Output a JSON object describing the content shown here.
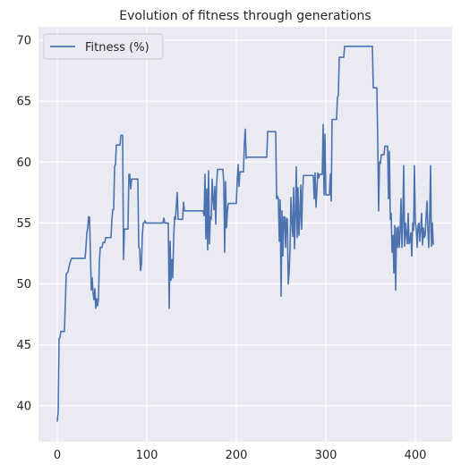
{
  "colors": {
    "axes_bg": "#eaeaf2",
    "grid": "#ffffff",
    "line": "#4c72b0",
    "legend_bg": "#eaeaf2",
    "legend_border": "#cccccc"
  },
  "chart_data": {
    "type": "line",
    "title": "Evolution of fitness through generations",
    "xlabel": "",
    "ylabel": "",
    "xlim": [
      -21,
      441
    ],
    "ylim": [
      37.05,
      71.1
    ],
    "xticks": [
      0,
      100,
      200,
      300,
      400
    ],
    "yticks": [
      40,
      45,
      50,
      55,
      60,
      65,
      70
    ],
    "grid": true,
    "legend_position": "top-left",
    "series": [
      {
        "name": "Fitness (%)",
        "points": [
          [
            0,
            38.7
          ],
          [
            1,
            39.5
          ],
          [
            2,
            45.5
          ],
          [
            3,
            45.6
          ],
          [
            4,
            46.1
          ],
          [
            8,
            46.1
          ],
          [
            9,
            48.5
          ],
          [
            10,
            50.8
          ],
          [
            12,
            51.0
          ],
          [
            14,
            51.7
          ],
          [
            16,
            52.1
          ],
          [
            31,
            52.1
          ],
          [
            32,
            53.0
          ],
          [
            33,
            54.2
          ],
          [
            34,
            54.6
          ],
          [
            35,
            55.5
          ],
          [
            36,
            55.5
          ],
          [
            37,
            52.5
          ],
          [
            38,
            49.5
          ],
          [
            39,
            50.5
          ],
          [
            40,
            49.2
          ],
          [
            41,
            48.7
          ],
          [
            42,
            49.6
          ],
          [
            43,
            48.0
          ],
          [
            44,
            48.8
          ],
          [
            45,
            48.2
          ],
          [
            46,
            48.8
          ],
          [
            47,
            51.8
          ],
          [
            48,
            53.0
          ],
          [
            50,
            53.0
          ],
          [
            51,
            53.4
          ],
          [
            53,
            53.4
          ],
          [
            54,
            53.8
          ],
          [
            60,
            53.8
          ],
          [
            61,
            55.3
          ],
          [
            62,
            56.1
          ],
          [
            63,
            56.1
          ],
          [
            64,
            59.6
          ],
          [
            65,
            59.8
          ],
          [
            66,
            61.4
          ],
          [
            70,
            61.4
          ],
          [
            71,
            62.2
          ],
          [
            73,
            62.2
          ],
          [
            74,
            52.0
          ],
          [
            75,
            54.5
          ],
          [
            79,
            54.5
          ],
          [
            80,
            59.0
          ],
          [
            81,
            59.0
          ],
          [
            82,
            57.8
          ],
          [
            83,
            58.6
          ],
          [
            90,
            58.6
          ],
          [
            91,
            53.0
          ],
          [
            92,
            52.9
          ],
          [
            93,
            51.1
          ],
          [
            94,
            51.6
          ],
          [
            95,
            54.0
          ],
          [
            96,
            55.0
          ],
          [
            97,
            55.0
          ],
          [
            98,
            55.2
          ],
          [
            99,
            55.0
          ],
          [
            118,
            55.0
          ],
          [
            119,
            55.4
          ],
          [
            120,
            55.0
          ],
          [
            124,
            55.0
          ],
          [
            125,
            48.0
          ],
          [
            126,
            53.5
          ],
          [
            127,
            50.3
          ],
          [
            128,
            52.0
          ],
          [
            129,
            50.5
          ],
          [
            130,
            53.7
          ],
          [
            131,
            55.5
          ],
          [
            132,
            55.3
          ],
          [
            134,
            57.5
          ],
          [
            135,
            55.3
          ],
          [
            140,
            55.3
          ],
          [
            141,
            56.7
          ],
          [
            142,
            56.0
          ],
          [
            163,
            56.0
          ],
          [
            164,
            55.6
          ],
          [
            165,
            59.0
          ],
          [
            166,
            53.7
          ],
          [
            167,
            57.8
          ],
          [
            168,
            52.8
          ],
          [
            169,
            59.3
          ],
          [
            170,
            53.3
          ],
          [
            171,
            55.5
          ],
          [
            172,
            55.3
          ],
          [
            173,
            58.6
          ],
          [
            174,
            57.0
          ],
          [
            175,
            56.1
          ],
          [
            176,
            58.0
          ],
          [
            177,
            54.9
          ],
          [
            178,
            58.2
          ],
          [
            179,
            59.4
          ],
          [
            185,
            59.4
          ],
          [
            186,
            58.3
          ],
          [
            187,
            52.6
          ],
          [
            188,
            58.4
          ],
          [
            189,
            54.6
          ],
          [
            190,
            55.9
          ],
          [
            191,
            56.6
          ],
          [
            200,
            56.6
          ],
          [
            201,
            58.5
          ],
          [
            202,
            59.8
          ],
          [
            203,
            58.0
          ],
          [
            204,
            59.2
          ],
          [
            208,
            59.2
          ],
          [
            209,
            61.5
          ],
          [
            210,
            62.7
          ],
          [
            211,
            60.3
          ],
          [
            212,
            60.4
          ],
          [
            234,
            60.4
          ],
          [
            235,
            62.5
          ],
          [
            244,
            62.5
          ],
          [
            245,
            57.0
          ],
          [
            246,
            57.2
          ],
          [
            247,
            57.0
          ],
          [
            248,
            53.5
          ],
          [
            249,
            56.9
          ],
          [
            250,
            49.0
          ],
          [
            251,
            56.0
          ],
          [
            252,
            52.3
          ],
          [
            253,
            55.5
          ],
          [
            254,
            55.5
          ],
          [
            255,
            53.0
          ],
          [
            256,
            55.4
          ],
          [
            257,
            55.3
          ],
          [
            258,
            50.0
          ],
          [
            259,
            51.0
          ],
          [
            260,
            52.8
          ],
          [
            261,
            57.1
          ],
          [
            262,
            55.1
          ],
          [
            263,
            53.9
          ],
          [
            264,
            57.9
          ],
          [
            265,
            52.9
          ],
          [
            266,
            55.6
          ],
          [
            267,
            59.6
          ],
          [
            268,
            53.8
          ],
          [
            269,
            57.9
          ],
          [
            270,
            54.0
          ],
          [
            271,
            55.5
          ],
          [
            272,
            58.1
          ],
          [
            273,
            54.5
          ],
          [
            274,
            57.5
          ],
          [
            275,
            58.9
          ],
          [
            286,
            58.9
          ],
          [
            287,
            57.0
          ],
          [
            288,
            59.1
          ],
          [
            289,
            56.3
          ],
          [
            290,
            57.6
          ],
          [
            291,
            59.1
          ],
          [
            292,
            58.7
          ],
          [
            293,
            59.0
          ],
          [
            296,
            59.0
          ],
          [
            297,
            63.1
          ],
          [
            298,
            57.3
          ],
          [
            299,
            62.3
          ],
          [
            300,
            57.3
          ],
          [
            304,
            57.3
          ],
          [
            305,
            59.0
          ],
          [
            306,
            56.8
          ],
          [
            307,
            63.5
          ],
          [
            312,
            63.5
          ],
          [
            313,
            65.3
          ],
          [
            314,
            65.5
          ],
          [
            315,
            68.6
          ],
          [
            320,
            68.6
          ],
          [
            321,
            69.5
          ],
          [
            352,
            69.5
          ],
          [
            353,
            66.1
          ],
          [
            357,
            66.1
          ],
          [
            358,
            61.6
          ],
          [
            359,
            56.0
          ],
          [
            360,
            60.0
          ],
          [
            361,
            59.9
          ],
          [
            362,
            60.6
          ],
          [
            365,
            60.6
          ],
          [
            366,
            61.3
          ],
          [
            369,
            61.3
          ],
          [
            370,
            57.0
          ],
          [
            371,
            60.9
          ],
          [
            372,
            55.3
          ],
          [
            373,
            55.8
          ],
          [
            374,
            52.6
          ],
          [
            375,
            54.0
          ],
          [
            376,
            50.9
          ],
          [
            377,
            54.8
          ],
          [
            378,
            49.5
          ],
          [
            379,
            54.6
          ],
          [
            380,
            53.0
          ],
          [
            381,
            54.7
          ],
          [
            382,
            53.0
          ],
          [
            383,
            54.3
          ],
          [
            384,
            57.0
          ],
          [
            385,
            53.0
          ],
          [
            386,
            55.2
          ],
          [
            387,
            59.7
          ],
          [
            388,
            53.1
          ],
          [
            389,
            55.0
          ],
          [
            390,
            54.0
          ],
          [
            391,
            53.3
          ],
          [
            392,
            55.8
          ],
          [
            393,
            53.3
          ],
          [
            394,
            53.5
          ],
          [
            395,
            54.2
          ],
          [
            396,
            52.3
          ],
          [
            397,
            55.0
          ],
          [
            398,
            54.4
          ],
          [
            399,
            59.7
          ],
          [
            400,
            55.0
          ],
          [
            401,
            54.5
          ],
          [
            402,
            53.0
          ],
          [
            403,
            54.8
          ],
          [
            404,
            55.0
          ],
          [
            405,
            53.5
          ],
          [
            406,
            54.5
          ],
          [
            407,
            55.8
          ],
          [
            408,
            53.2
          ],
          [
            409,
            54.6
          ],
          [
            410,
            53.8
          ],
          [
            411,
            54.0
          ],
          [
            412,
            55.5
          ],
          [
            413,
            56.8
          ],
          [
            414,
            54.5
          ],
          [
            415,
            53.0
          ],
          [
            416,
            55.5
          ],
          [
            417,
            59.7
          ],
          [
            418,
            53.1
          ],
          [
            419,
            55.0
          ],
          [
            420,
            53.2
          ]
        ]
      }
    ]
  }
}
